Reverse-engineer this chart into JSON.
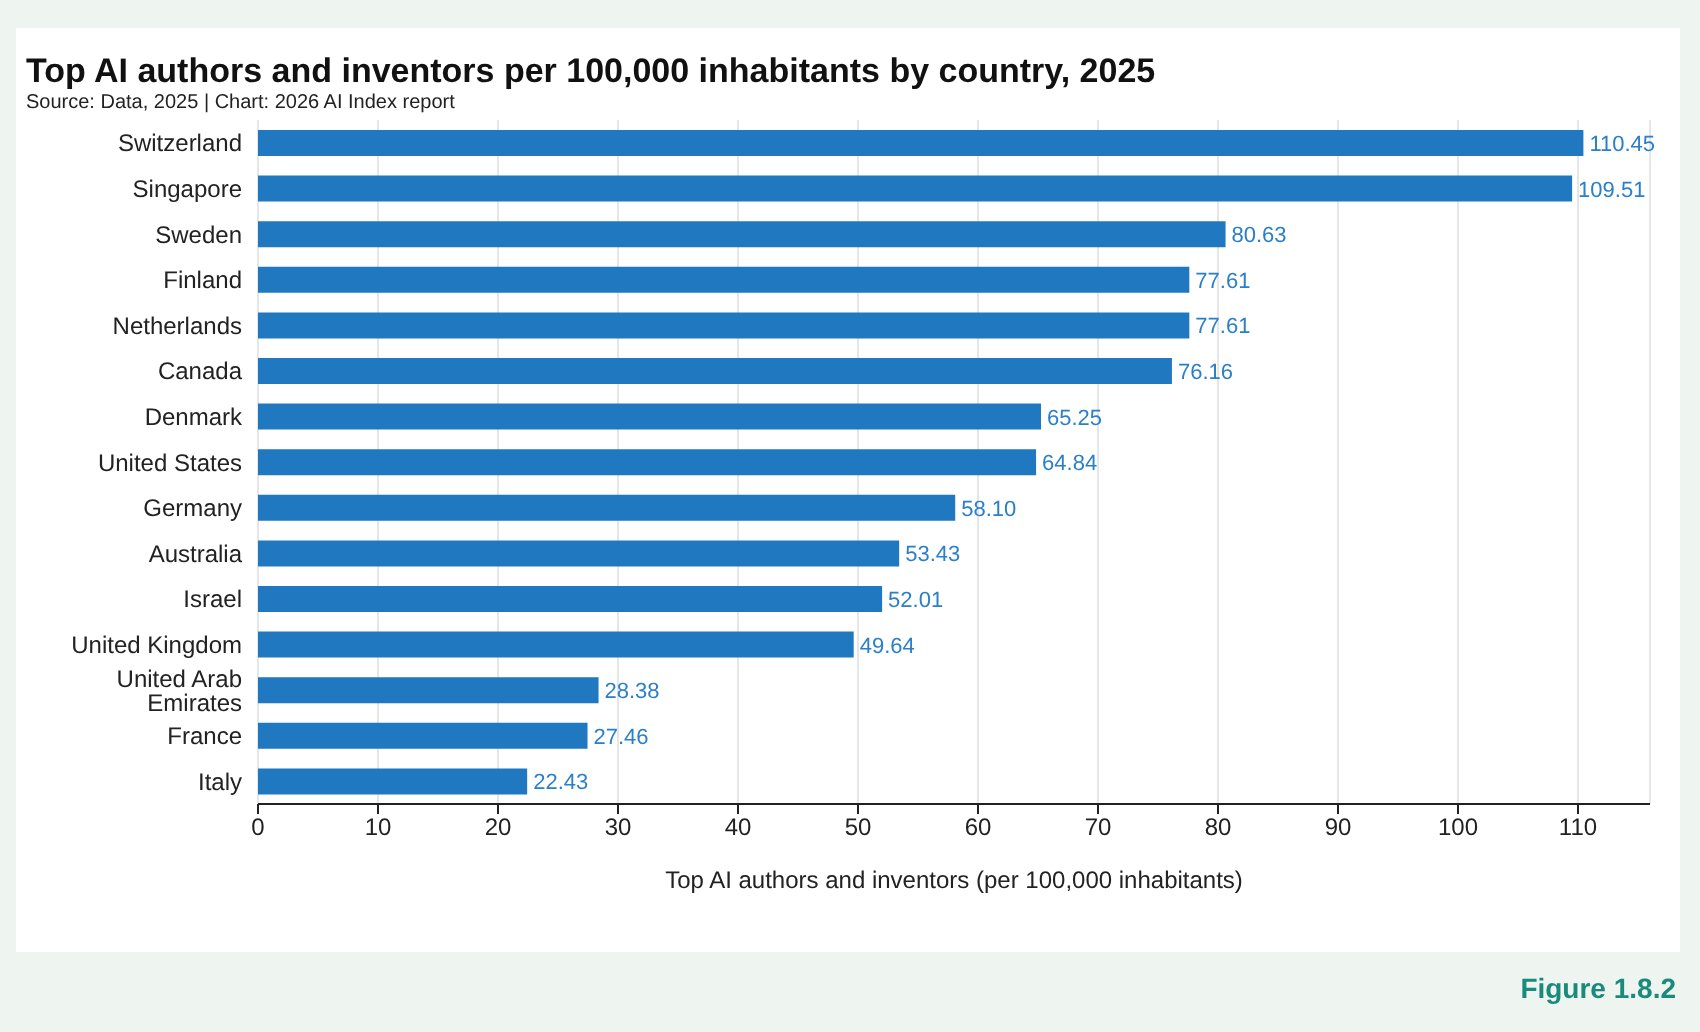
{
  "chart_data": {
    "type": "bar",
    "orientation": "horizontal",
    "title": "Top AI authors and inventors per 100,000 inhabitants by country, 2025",
    "subtitle": "Source: Data, 2025 | Chart: 2026 AI Index report",
    "xlabel": "Top AI authors and inventors (per 100,000 inhabitants)",
    "categories": [
      "Switzerland",
      "Singapore",
      "Sweden",
      "Finland",
      "Netherlands",
      "Canada",
      "Denmark",
      "United States",
      "Germany",
      "Australia",
      "Israel",
      "United Kingdom",
      "United Arab Emirates",
      "France",
      "Italy"
    ],
    "values": [
      110.45,
      109.51,
      80.63,
      77.61,
      77.61,
      76.16,
      65.25,
      64.84,
      58.1,
      53.43,
      52.01,
      49.64,
      28.38,
      27.46,
      22.43
    ],
    "value_labels": [
      "110.45",
      "109.51",
      "80.63",
      "77.61",
      "77.61",
      "76.16",
      "65.25",
      "64.84",
      "58.10",
      "53.43",
      "52.01",
      "49.64",
      "28.38",
      "27.46",
      "22.43"
    ],
    "color": "#2078c0",
    "xlim": [
      0,
      116
    ],
    "xticks": [
      0,
      10,
      20,
      30,
      40,
      50,
      60,
      70,
      80,
      90,
      100,
      110
    ],
    "grid": "x",
    "annotations": [
      "Figure 1.8.2"
    ]
  }
}
